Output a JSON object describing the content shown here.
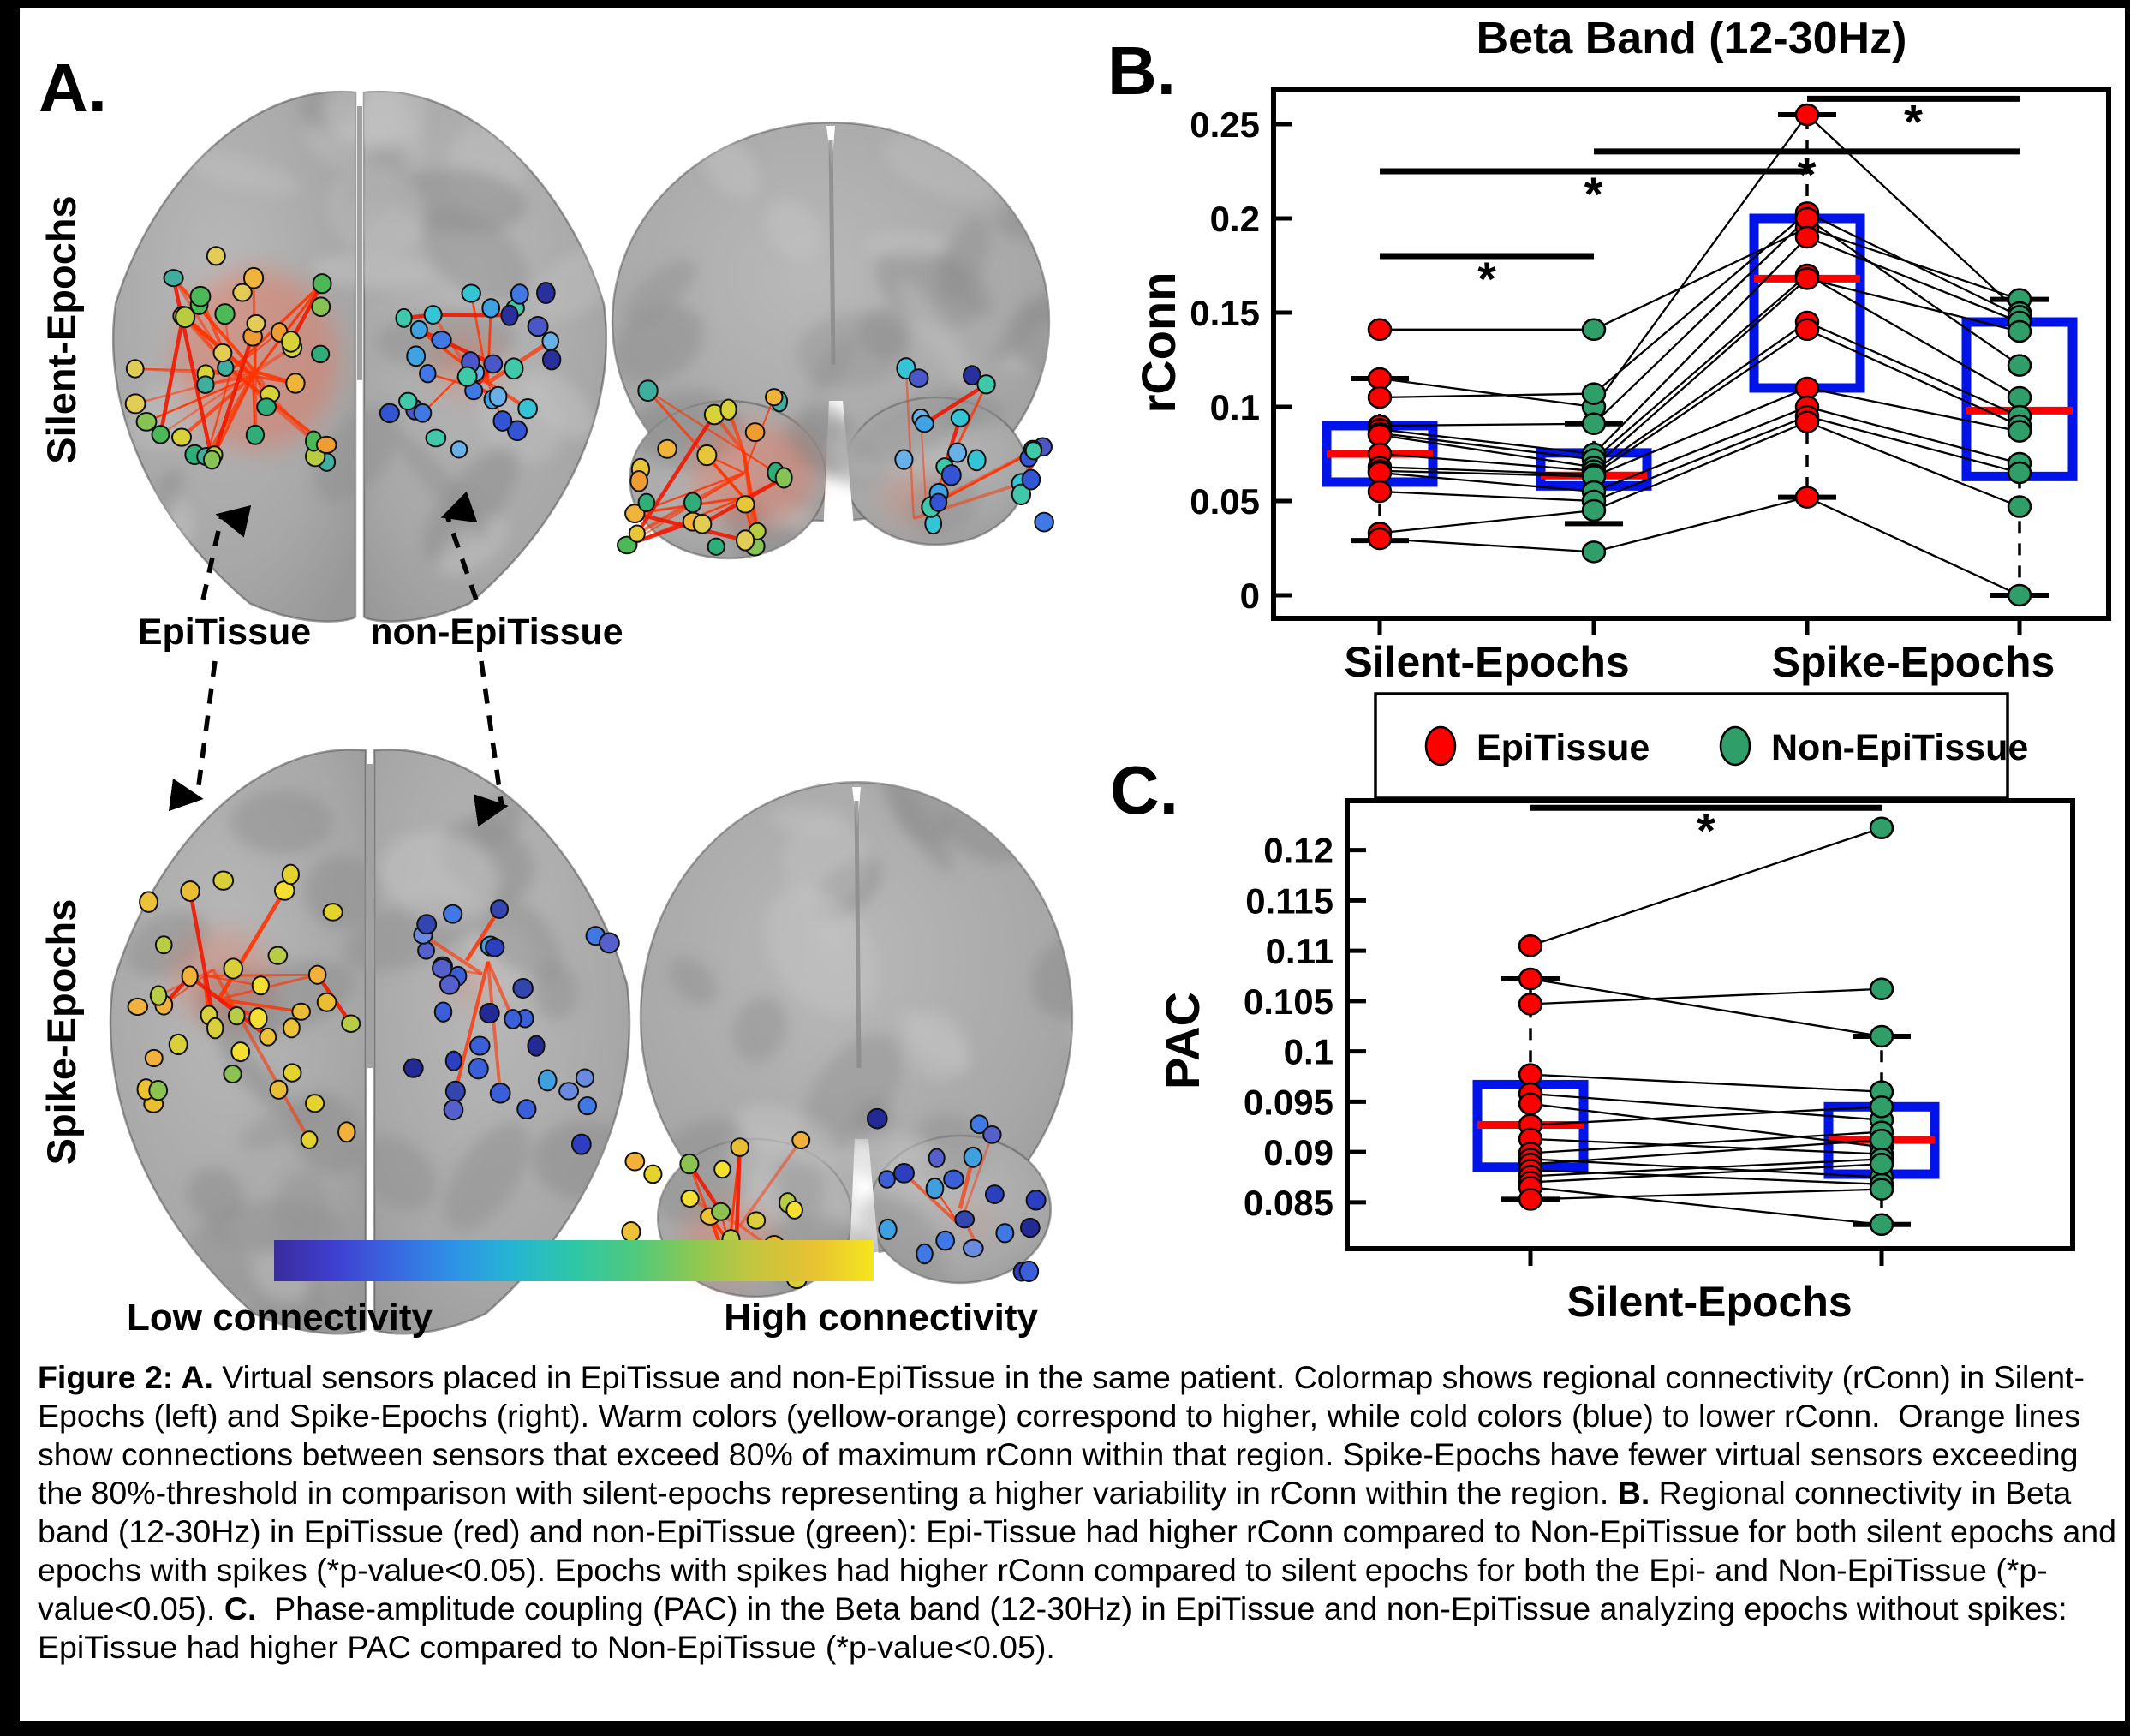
{
  "figure_title": "Figure 2",
  "panel_a": {
    "label": "A.",
    "row_labels": [
      "Silent-Epochs",
      "Spike-Epochs"
    ],
    "annotations": {
      "epi": "EpiTissue",
      "non_epi": "non-EpiTissue"
    },
    "colorbar": {
      "low_label": "Low connectivity",
      "high_label": "High connectivity",
      "gradient": [
        "#3a2d9b",
        "#3f3fd0",
        "#3a67e0",
        "#2e93e6",
        "#25b6d2",
        "#2ec7a6",
        "#4fc97e",
        "#8cc853",
        "#c4c53e",
        "#e8c233",
        "#f5e61e"
      ]
    },
    "clusters": [
      {
        "id": "SA_epi",
        "brain": "silent-axial",
        "tissue": "EpiTissue",
        "sensors": 38,
        "connectivity": "high",
        "palette": "warm"
      },
      {
        "id": "SA_non",
        "brain": "silent-axial",
        "tissue": "non-EpiTissue",
        "sensors": 32,
        "connectivity": "low",
        "palette": "cool"
      },
      {
        "id": "SF_epi",
        "brain": "silent-frontal",
        "tissue": "EpiTissue",
        "sensors": 24,
        "connectivity": "high",
        "palette": "warm"
      },
      {
        "id": "SF_non",
        "brain": "silent-frontal",
        "tissue": "non-EpiTissue",
        "sensors": 24,
        "connectivity": "low",
        "palette": "cool"
      },
      {
        "id": "KA_epi",
        "brain": "spike-axial",
        "tissue": "EpiTissue",
        "sensors": 36,
        "connectivity": "high",
        "palette": "warm_spike"
      },
      {
        "id": "KA_non",
        "brain": "spike-axial",
        "tissue": "non-EpiTissue",
        "sensors": 32,
        "connectivity": "low",
        "palette": "cool_spike"
      },
      {
        "id": "KF_epi",
        "brain": "spike-frontal",
        "tissue": "EpiTissue",
        "sensors": 20,
        "connectivity": "high",
        "palette": "warm_spike"
      },
      {
        "id": "KF_non",
        "brain": "spike-frontal",
        "tissue": "non-EpiTissue",
        "sensors": 20,
        "connectivity": "low",
        "palette": "cool_spike"
      }
    ],
    "palettes": {
      "warm": [
        "#2fae7a",
        "#4db858",
        "#86c254",
        "#b8cc40",
        "#d7d238",
        "#e8c63a",
        "#f0b43a",
        "#ef9c33",
        "#e3cc56",
        "#3fae9e"
      ],
      "cool": [
        "#2a2f9e",
        "#3454d6",
        "#4079e6",
        "#3fa3e3",
        "#35c3d6",
        "#3fc9a8",
        "#6ab0e8",
        "#4b57c9"
      ],
      "warm_spike": [
        "#e4d22f",
        "#eec237",
        "#f2b13a",
        "#d8cf3a",
        "#b9cc45",
        "#8cc350",
        "#e9bd36",
        "#f5e032"
      ],
      "cool_spike": [
        "#232a96",
        "#2c3fc0",
        "#3a5fd8",
        "#4079e6",
        "#3fa0e0",
        "#5560cc",
        "#3346b0",
        "#6a8ae0"
      ]
    },
    "connection_line_color": "#ff3300"
  },
  "panel_b": {
    "label": "B."
  },
  "panel_c": {
    "label": "C."
  },
  "legend": {
    "items": [
      {
        "label": "EpiTissue",
        "color": "#ff0000"
      },
      {
        "label": "Non-EpiTissue",
        "color": "#2f9e68"
      }
    ]
  },
  "colors": {
    "box": "#0013e8",
    "median": "#ff0000",
    "marker_epi": "#ff0000",
    "marker_non": "#2f9e68",
    "axis": "#000000"
  },
  "chart_data": [
    {
      "type": "box-scatter-paired",
      "panel": "B",
      "title": "Beta Band (12-30Hz)",
      "ylabel": "rConn",
      "group_labels": [
        "Silent-Epochs",
        "Spike-Epochs"
      ],
      "series": [
        "EpiTissue",
        "Non-EpiTissue"
      ],
      "yticks": [
        0,
        0.05,
        0.1,
        0.15,
        0.2,
        0.25
      ],
      "ytick_labels": [
        "0",
        "0.05",
        "0.1",
        "0.15",
        "0.2",
        "0.25"
      ],
      "ylim": [
        -0.0123,
        0.2682
      ],
      "grid": false,
      "columns": [
        {
          "group": "Silent-Epochs",
          "series": "EpiTissue",
          "box": {
            "q1": 0.06,
            "median": 0.075,
            "q3": 0.09,
            "whisker_low": 0.029,
            "whisker_high": 0.115
          }
        },
        {
          "group": "Silent-Epochs",
          "series": "Non-EpiTissue",
          "box": {
            "q1": 0.058,
            "median": 0.0635,
            "q3": 0.0755,
            "whisker_low": 0.038,
            "whisker_high": 0.091
          }
        },
        {
          "group": "Spike-Epochs",
          "series": "EpiTissue",
          "box": {
            "q1": 0.11,
            "median": 0.168,
            "q3": 0.2,
            "whisker_low": 0.052,
            "whisker_high": 0.255
          }
        },
        {
          "group": "Spike-Epochs",
          "series": "Non-EpiTissue",
          "box": {
            "q1": 0.063,
            "median": 0.098,
            "q3": 0.145,
            "whisker_low": 0.0,
            "whisker_high": 0.157
          }
        }
      ],
      "patients": [
        [
          0.141,
          0.141,
          0.195,
          0.157
        ],
        [
          0.115,
          0.1,
          0.255,
          0.15
        ],
        [
          0.105,
          0.107,
          0.203,
          0.148
        ],
        [
          0.09,
          0.091,
          0.2,
          0.122
        ],
        [
          0.088,
          0.075,
          0.19,
          0.145
        ],
        [
          0.086,
          0.072,
          0.17,
          0.105
        ],
        [
          0.085,
          0.068,
          0.168,
          0.14
        ],
        [
          0.075,
          0.066,
          0.145,
          0.095
        ],
        [
          0.068,
          0.064,
          0.141,
          0.09
        ],
        [
          0.066,
          0.063,
          0.11,
          0.087
        ],
        [
          0.065,
          0.055,
          0.1,
          0.07
        ],
        [
          0.055,
          0.05,
          0.095,
          0.065
        ],
        [
          0.033,
          0.045,
          0.092,
          0.047
        ],
        [
          0.03,
          0.023,
          0.052,
          0.0
        ]
      ],
      "significance": [
        {
          "cols": [
            0,
            1
          ],
          "y": 0.18,
          "label": "*"
        },
        {
          "cols": [
            0,
            2
          ],
          "y": 0.225,
          "label": "*"
        },
        {
          "cols": [
            1,
            3
          ],
          "y": 0.2355,
          "label": "*"
        },
        {
          "cols": [
            2,
            3
          ],
          "y": 0.2635,
          "label": "*"
        }
      ]
    },
    {
      "type": "box-scatter-paired",
      "panel": "C",
      "title": "",
      "ylabel": "PAC",
      "xlabel": "Silent-Epochs",
      "group_labels": [
        "Silent-Epochs"
      ],
      "series": [
        "EpiTissue",
        "Non-EpiTissue"
      ],
      "yticks": [
        0.085,
        0.09,
        0.095,
        0.1,
        0.105,
        0.11,
        0.115,
        0.12
      ],
      "ytick_labels": [
        "0.085",
        "0.09",
        "0.095",
        "0.1",
        "0.105",
        "0.11",
        "0.115",
        "0.12"
      ],
      "ylim": [
        0.0804,
        0.1249
      ],
      "grid": false,
      "columns": [
        {
          "group": "Silent-Epochs",
          "series": "EpiTissue",
          "box": {
            "q1": 0.0885,
            "median": 0.0927,
            "q3": 0.0967,
            "whisker_low": 0.0853,
            "whisker_high": 0.1072
          }
        },
        {
          "group": "Silent-Epochs",
          "series": "Non-EpiTissue",
          "box": {
            "q1": 0.0878,
            "median": 0.0912,
            "q3": 0.0945,
            "whisker_low": 0.0828,
            "whisker_high": 0.1015
          }
        }
      ],
      "patients": [
        [
          0.1105,
          0.1222
        ],
        [
          0.1072,
          0.1015
        ],
        [
          0.1047,
          0.1062
        ],
        [
          0.0977,
          0.096
        ],
        [
          0.0958,
          0.0932
        ],
        [
          0.0948,
          0.0905
        ],
        [
          0.0927,
          0.0945
        ],
        [
          0.0913,
          0.0898
        ],
        [
          0.0899,
          0.092
        ],
        [
          0.0893,
          0.0875
        ],
        [
          0.0888,
          0.0912
        ],
        [
          0.0882,
          0.0868
        ],
        [
          0.0876,
          0.0893
        ],
        [
          0.087,
          0.0888
        ],
        [
          0.0865,
          0.0828
        ],
        [
          0.0853,
          0.0863
        ]
      ],
      "significance": [
        {
          "cols": [
            0,
            1
          ],
          "y": 0.1242,
          "label": "*"
        }
      ]
    }
  ],
  "caption": {
    "segments": [
      {
        "text": "Figure 2: A.",
        "bold": true
      },
      {
        "text": " Virtual sensors placed in EpiTissue and non-EpiTissue in the same patient. Colormap shows regional connectivity (rConn) in Silent-Epochs (left) and Spike-Epochs (right). Warm colors (yellow-orange) correspond to higher, while cold colors (blue) to lower rConn.  Orange lines show connections between sensors that exceed 80% of maximum rConn within that region. Spike-Epochs have fewer virtual sensors exceeding the 80%-threshold in comparison with silent-epochs representing a higher variability in rConn within the region. ",
        "bold": false
      },
      {
        "text": "B.",
        "bold": true
      },
      {
        "text": " Regional connectivity in Beta band (12-30Hz) in EpiTissue (red) and non-EpiTissue (green): Epi-Tissue had higher rConn compared to Non-EpiTissue for both silent epochs and epochs with spikes (*p-value<0.05). Epochs with spikes had higher rConn compared to silent epochs for both the Epi- and Non-EpiTissue (*p-value<0.05). ",
        "bold": false
      },
      {
        "text": "C.",
        "bold": true
      },
      {
        "text": "  Phase-amplitude coupling (PAC) in the Beta band (12-30Hz) in EpiTissue and non-EpiTissue analyzing epochs without spikes: EpiTissue had higher PAC compared to Non-EpiTissue (*p-value<0.05).",
        "bold": false
      }
    ]
  }
}
